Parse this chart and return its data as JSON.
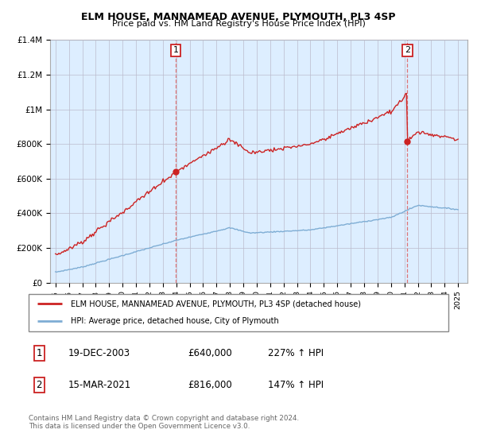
{
  "title": "ELM HOUSE, MANNAMEAD AVENUE, PLYMOUTH, PL3 4SP",
  "subtitle": "Price paid vs. HM Land Registry's House Price Index (HPI)",
  "ylim": [
    0,
    1400000
  ],
  "yticks": [
    0,
    200000,
    400000,
    600000,
    800000,
    1000000,
    1200000,
    1400000
  ],
  "ytick_labels": [
    "£0",
    "£200K",
    "£400K",
    "£600K",
    "£800K",
    "£1M",
    "£1.2M",
    "£1.4M"
  ],
  "sale1_year": 2003.97,
  "sale1_price": 640000,
  "sale2_year": 2021.21,
  "sale2_price": 816000,
  "hpi_color": "#7eadd4",
  "house_color": "#cc2222",
  "vline_color": "#dd6666",
  "bg_fill_color": "#ddeeff",
  "legend_label_house": "ELM HOUSE, MANNAMEAD AVENUE, PLYMOUTH, PL3 4SP (detached house)",
  "legend_label_hpi": "HPI: Average price, detached house, City of Plymouth",
  "table_row1": [
    "1",
    "19-DEC-2003",
    "£640,000",
    "227% ↑ HPI"
  ],
  "table_row2": [
    "2",
    "15-MAR-2021",
    "£816,000",
    "147% ↑ HPI"
  ],
  "footer": "Contains HM Land Registry data © Crown copyright and database right 2024.\nThis data is licensed under the Open Government Licence v3.0.",
  "background_color": "#ffffff",
  "grid_color": "#bbbbcc",
  "xstart": 1995,
  "xend": 2025
}
